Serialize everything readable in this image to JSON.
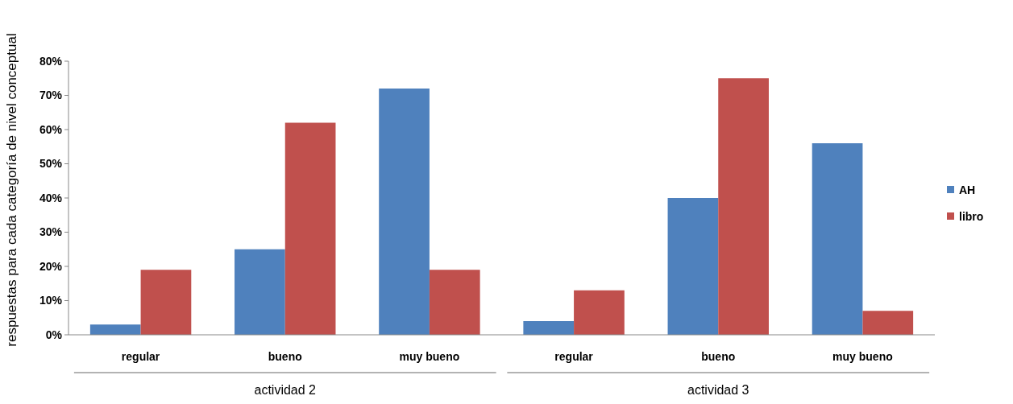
{
  "chart_data": {
    "type": "bar",
    "ylabel": "respuestas para cada categoría de nivel conceptual",
    "categories": [
      "regular",
      "bueno",
      "muy bueno",
      "regular",
      "bueno",
      "muy bueno"
    ],
    "series": [
      {
        "name": "AH",
        "color": "#4f81bd",
        "values": [
          3,
          25,
          72,
          4,
          40,
          56
        ]
      },
      {
        "name": "libro",
        "color": "#c0504d",
        "values": [
          19,
          62,
          19,
          13,
          75,
          7
        ]
      }
    ],
    "ylim": [
      0,
      80
    ],
    "yticks": [
      {
        "value": 0,
        "label": "0%"
      },
      {
        "value": 10,
        "label": "10%"
      },
      {
        "value": 20,
        "label": "20%"
      },
      {
        "value": 30,
        "label": "30%"
      },
      {
        "value": 40,
        "label": "40%"
      },
      {
        "value": 50,
        "label": "50%"
      },
      {
        "value": 60,
        "label": "60%"
      },
      {
        "value": 70,
        "label": "70%"
      },
      {
        "value": 80,
        "label": "80%"
      }
    ],
    "annotations": [
      "actividad 2",
      "actividad 3"
    ],
    "legend": "right",
    "grid": false
  }
}
